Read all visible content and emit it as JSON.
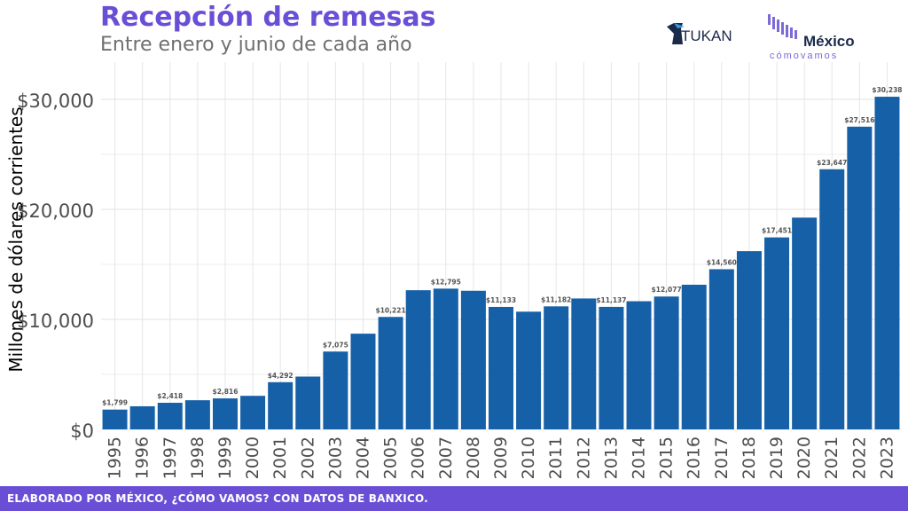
{
  "header": {
    "title": "Recepción de remesas",
    "subtitle": "Entre enero y junio de cada año"
  },
  "logos": {
    "tukan": "TUKAN",
    "mcv_main": "México",
    "mcv_sub": "cómovamos"
  },
  "footer": {
    "text": "ELABORADO POR MÉXICO, ¿CÓMO VAMOS? CON DATOS DE BANXICO."
  },
  "colors": {
    "bar": "#1660a8",
    "accent": "#6a4fd6",
    "grid": "#e6e6e6"
  },
  "chart_data": {
    "type": "bar",
    "title": "Recepción de remesas",
    "subtitle": "Entre enero y junio de cada año",
    "xlabel": "",
    "ylabel": "Millones de dólares corrientes",
    "ylim": [
      0,
      31500
    ],
    "yticks": [
      0,
      10000,
      20000,
      30000
    ],
    "ytick_labels": [
      "$0",
      "$10,000",
      "$20,000",
      "$30,000"
    ],
    "grid": true,
    "categories": [
      "1995",
      "1996",
      "1997",
      "1998",
      "1999",
      "2000",
      "2001",
      "2002",
      "2003",
      "2004",
      "2005",
      "2006",
      "2007",
      "2008",
      "2009",
      "2010",
      "2011",
      "2012",
      "2013",
      "2014",
      "2015",
      "2016",
      "2017",
      "2018",
      "2019",
      "2020",
      "2021",
      "2022",
      "2023"
    ],
    "values": [
      1799,
      2100,
      2418,
      2650,
      2816,
      3050,
      4292,
      4800,
      7075,
      8700,
      10221,
      12650,
      12795,
      12600,
      11133,
      10700,
      11182,
      11900,
      11137,
      11650,
      12077,
      13150,
      14560,
      16200,
      17451,
      19250,
      23647,
      27516,
      30238
    ],
    "data_labels": [
      "$1,799",
      "",
      "$2,418",
      "",
      "$2,816",
      "",
      "$4,292",
      "",
      "$7,075",
      "",
      "$10,221",
      "",
      "$12,795",
      "",
      "$11,133",
      "",
      "$11,182",
      "",
      "$11,137",
      "",
      "$12,077",
      "",
      "$14,560",
      "",
      "$17,451",
      "",
      "$23,647",
      "$27,516",
      "$30,238"
    ]
  }
}
